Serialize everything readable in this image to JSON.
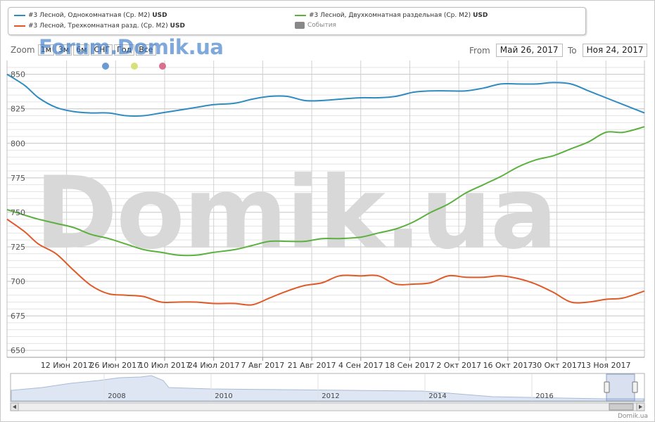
{
  "legend": {
    "items": [
      {
        "label": "#3 Лесной, Однокомнатная (Ср. М2)",
        "unit": "USD",
        "color": "#2f8bc0"
      },
      {
        "label": "#3 Лесной, Трехкомнатная разд. (Ср. М2)",
        "unit": "USD",
        "color": "#e05a28"
      },
      {
        "label": "#3 Лесной, Двухкомнатная раздельная (Ср. М2)",
        "unit": "USD",
        "color": "#5cb040"
      },
      {
        "label": "События",
        "unit": "",
        "color": "#888888"
      }
    ]
  },
  "range_selector": {
    "zoom_label": "Zoom",
    "buttons": [
      "1м",
      "3м",
      "6м",
      "СНГ",
      "Год",
      "Все"
    ],
    "from_label": "From",
    "from_value": "Май 26, 2017",
    "to_label": "To",
    "to_value": "Ноя 24, 2017"
  },
  "watermark_text": "Forum.Domik.ua",
  "watermark_big": "Domik.ua",
  "marker_dots": [
    "#6a9bd4",
    "#d8e07a",
    "#d9708e"
  ],
  "credit": "Domik.ua",
  "navigator_labels": [
    "2008",
    "2010",
    "2012",
    "2014",
    "2016"
  ],
  "chart_data": {
    "type": "line",
    "ylim": [
      645,
      860
    ],
    "yticks": [
      650,
      675,
      700,
      725,
      750,
      775,
      800,
      825,
      850
    ],
    "x_range": [
      "2017-05-26",
      "2017-11-24"
    ],
    "xticks": [
      {
        "date": "2017-06-12",
        "label": "12 Июн 2017"
      },
      {
        "date": "2017-06-26",
        "label": "26 Июн 2017"
      },
      {
        "date": "2017-07-10",
        "label": "10 Июл 2017"
      },
      {
        "date": "2017-07-24",
        "label": "24 Июл 2017"
      },
      {
        "date": "2017-08-07",
        "label": "7 Авг 2017"
      },
      {
        "date": "2017-08-21",
        "label": "21 Авг 2017"
      },
      {
        "date": "2017-09-04",
        "label": "4 Сен 2017"
      },
      {
        "date": "2017-09-18",
        "label": "18 Сен 2017"
      },
      {
        "date": "2017-10-02",
        "label": "2 Окт 2017"
      },
      {
        "date": "2017-10-16",
        "label": "16 Окт 2017"
      },
      {
        "date": "2017-10-30",
        "label": "30 Окт 2017"
      },
      {
        "date": "2017-11-13",
        "label": "13 Ноя 2017"
      }
    ],
    "series": [
      {
        "name": "#3 Лесной, Однокомнатная (Ср. М2)",
        "color": "#2f8bc0",
        "x": [
          "2017-05-26",
          "2017-05-31",
          "2017-06-04",
          "2017-06-09",
          "2017-06-14",
          "2017-06-19",
          "2017-06-24",
          "2017-06-29",
          "2017-07-04",
          "2017-07-09",
          "2017-07-14",
          "2017-07-19",
          "2017-07-24",
          "2017-07-30",
          "2017-08-04",
          "2017-08-09",
          "2017-08-14",
          "2017-08-19",
          "2017-08-24",
          "2017-08-29",
          "2017-09-04",
          "2017-09-09",
          "2017-09-14",
          "2017-09-19",
          "2017-09-24",
          "2017-09-29",
          "2017-10-04",
          "2017-10-09",
          "2017-10-14",
          "2017-10-19",
          "2017-10-24",
          "2017-10-29",
          "2017-11-03",
          "2017-11-08",
          "2017-11-13",
          "2017-11-18",
          "2017-11-24"
        ],
        "y": [
          850,
          842,
          833,
          826,
          823,
          822,
          822,
          820,
          820,
          822,
          824,
          826,
          828,
          829,
          832,
          834,
          834,
          831,
          831,
          832,
          833,
          833,
          834,
          837,
          838,
          838,
          838,
          840,
          843,
          843,
          843,
          844,
          843,
          838,
          833,
          828,
          822
        ]
      },
      {
        "name": "#3 Лесной, Двухкомнатная раздельная (Ср. М2)",
        "color": "#5cb040",
        "x": [
          "2017-05-26",
          "2017-05-31",
          "2017-06-04",
          "2017-06-09",
          "2017-06-14",
          "2017-06-19",
          "2017-06-24",
          "2017-06-29",
          "2017-07-04",
          "2017-07-09",
          "2017-07-14",
          "2017-07-19",
          "2017-07-24",
          "2017-07-30",
          "2017-08-04",
          "2017-08-09",
          "2017-08-14",
          "2017-08-19",
          "2017-08-24",
          "2017-08-29",
          "2017-09-04",
          "2017-09-09",
          "2017-09-14",
          "2017-09-19",
          "2017-09-24",
          "2017-09-29",
          "2017-10-04",
          "2017-10-09",
          "2017-10-14",
          "2017-10-19",
          "2017-10-24",
          "2017-10-29",
          "2017-11-03",
          "2017-11-08",
          "2017-11-13",
          "2017-11-18",
          "2017-11-24"
        ],
        "y": [
          752,
          748,
          745,
          742,
          739,
          734,
          731,
          727,
          723,
          721,
          719,
          719,
          721,
          723,
          726,
          729,
          729,
          729,
          731,
          731,
          732,
          735,
          738,
          743,
          750,
          756,
          764,
          770,
          776,
          783,
          788,
          791,
          796,
          801,
          808,
          808,
          812
        ]
      },
      {
        "name": "#3 Лесной, Трехкомнатная разд. (Ср. М2)",
        "color": "#e05a28",
        "x": [
          "2017-05-26",
          "2017-05-31",
          "2017-06-04",
          "2017-06-09",
          "2017-06-14",
          "2017-06-19",
          "2017-06-24",
          "2017-06-29",
          "2017-07-04",
          "2017-07-09",
          "2017-07-14",
          "2017-07-19",
          "2017-07-24",
          "2017-07-30",
          "2017-08-04",
          "2017-08-09",
          "2017-08-14",
          "2017-08-19",
          "2017-08-24",
          "2017-08-29",
          "2017-09-04",
          "2017-09-09",
          "2017-09-14",
          "2017-09-19",
          "2017-09-24",
          "2017-09-29",
          "2017-10-04",
          "2017-10-09",
          "2017-10-14",
          "2017-10-19",
          "2017-10-24",
          "2017-10-29",
          "2017-11-03",
          "2017-11-08",
          "2017-11-13",
          "2017-11-18",
          "2017-11-24"
        ],
        "y": [
          745,
          736,
          727,
          720,
          708,
          697,
          691,
          690,
          689,
          685,
          685,
          685,
          684,
          684,
          683,
          688,
          693,
          697,
          699,
          704,
          704,
          704,
          698,
          698,
          699,
          704,
          703,
          703,
          704,
          702,
          698,
          692,
          685,
          685,
          687,
          688,
          693
        ]
      }
    ]
  }
}
